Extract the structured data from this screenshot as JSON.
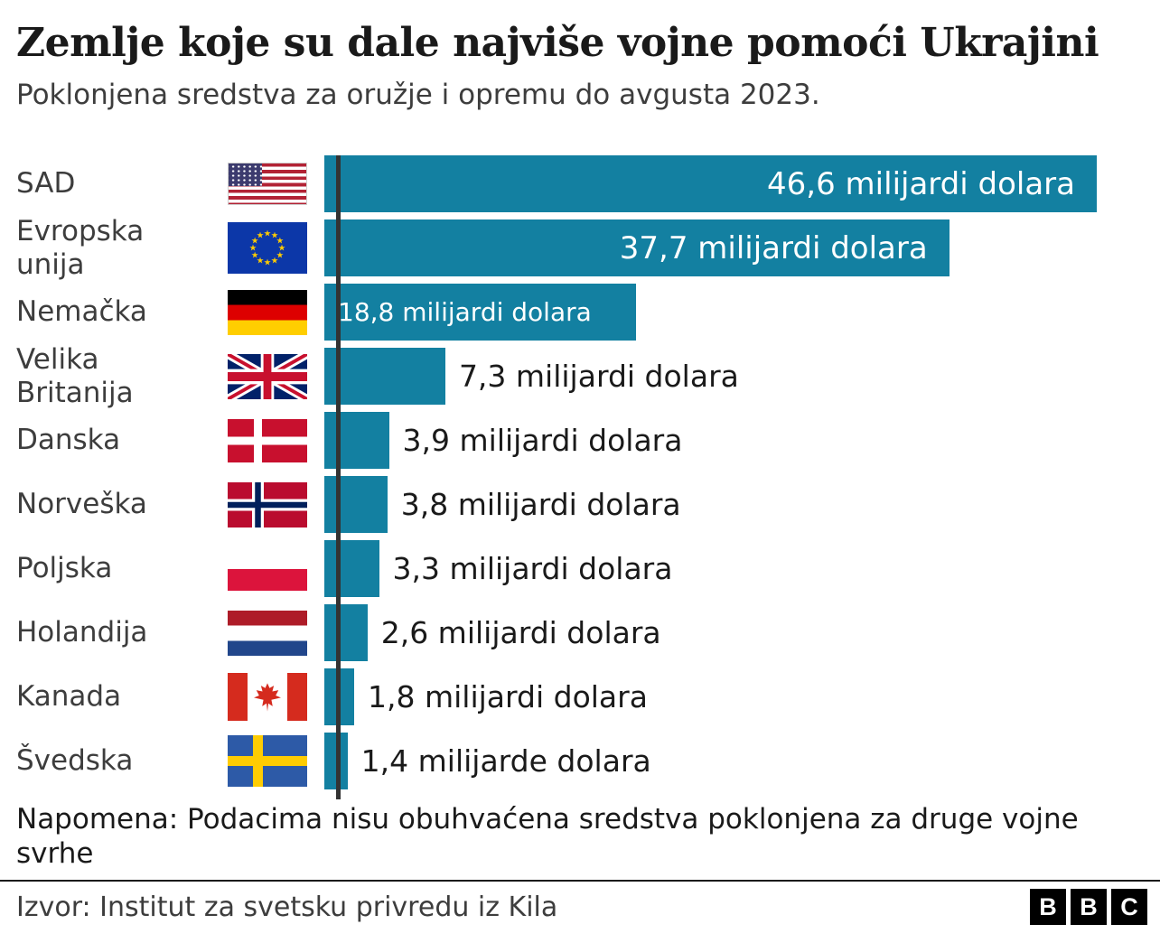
{
  "header": {
    "title": "Zemlje koje su dale najviše vojne pomoći Ukrajini",
    "subtitle": "Poklonjena sredstva za oružje i opremu do avgusta 2023."
  },
  "chart_data": {
    "type": "bar",
    "orientation": "horizontal",
    "title": "Zemlje koje su dale najviše vojne pomoći Ukrajini",
    "subtitle": "Poklonjena sredstva za oružje i opremu do avgusta 2023.",
    "unit": "milijardi dolara",
    "xlim": [
      0,
      49.6
    ],
    "grid": false,
    "bar_color": "#1380A1",
    "axis_color": "#333333",
    "categories": [
      "SAD",
      "Evropska unija",
      "Nemačka",
      "Velika Britanija",
      "Danska",
      "Norveška",
      "Poljska",
      "Holandija",
      "Kanada",
      "Švedska"
    ],
    "values": [
      46.6,
      37.7,
      18.8,
      7.3,
      3.9,
      3.8,
      3.3,
      2.6,
      1.8,
      1.4
    ],
    "rows": [
      {
        "label_lines": [
          "SAD"
        ],
        "flag": "us-flag",
        "value": 46.6,
        "value_label": "46,6 milijardi dolara",
        "placement": "inside-right"
      },
      {
        "label_lines": [
          "Evropska",
          "unija"
        ],
        "flag": "eu-flag",
        "value": 37.7,
        "value_label": "37,7 milijardi dolara",
        "placement": "inside-right"
      },
      {
        "label_lines": [
          "Nemačka"
        ],
        "flag": "germany-flag",
        "value": 18.8,
        "value_label": "18,8 milijardi dolara",
        "placement": "inside-left"
      },
      {
        "label_lines": [
          "Velika",
          "Britanija"
        ],
        "flag": "uk-flag",
        "value": 7.3,
        "value_label": "7,3 milijardi dolara",
        "placement": "outside"
      },
      {
        "label_lines": [
          "Danska"
        ],
        "flag": "denmark-flag",
        "value": 3.9,
        "value_label": "3,9 milijardi dolara",
        "placement": "outside"
      },
      {
        "label_lines": [
          "Norveška"
        ],
        "flag": "norway-flag",
        "value": 3.8,
        "value_label": "3,8 milijardi dolara",
        "placement": "outside"
      },
      {
        "label_lines": [
          "Poljska"
        ],
        "flag": "poland-flag",
        "value": 3.3,
        "value_label": "3,3 milijardi dolara",
        "placement": "outside"
      },
      {
        "label_lines": [
          "Holandija"
        ],
        "flag": "netherlands-flag",
        "value": 2.6,
        "value_label": "2,6 milijardi dolara",
        "placement": "outside"
      },
      {
        "label_lines": [
          "Kanada"
        ],
        "flag": "canada-flag",
        "value": 1.8,
        "value_label": "1,8 milijardi dolara",
        "placement": "outside"
      },
      {
        "label_lines": [
          "Švedska"
        ],
        "flag": "sweden-flag",
        "value": 1.4,
        "value_label": "1,4 milijarde dolara",
        "placement": "outside"
      }
    ]
  },
  "footer": {
    "note": "Napomena: Podacima nisu obuhvaćena sredstva poklonjena za druge vojne svrhe",
    "source": "Izvor: Institut za svetsku privredu iz Kila",
    "logo_letters": [
      "B",
      "B",
      "C"
    ]
  }
}
